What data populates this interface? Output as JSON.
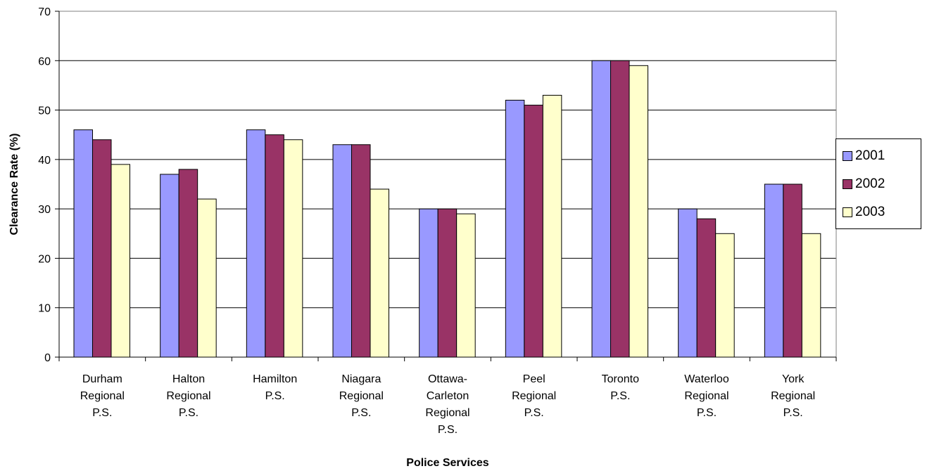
{
  "chart_data": {
    "type": "bar",
    "title": "",
    "xlabel": "Police Services",
    "ylabel": "Clearance Rate (%)",
    "ylim": [
      0,
      70
    ],
    "yticks": [
      0,
      10,
      20,
      30,
      40,
      50,
      60,
      70
    ],
    "grid": "horizontal",
    "legend_position": "right",
    "categories": [
      [
        "Durham",
        "Regional",
        "P.S."
      ],
      [
        "Halton",
        "Regional",
        "P.S."
      ],
      [
        "Hamilton",
        "P.S."
      ],
      [
        "Niagara",
        "Regional",
        "P.S."
      ],
      [
        "Ottawa-",
        "Carleton",
        "Regional",
        "P.S."
      ],
      [
        "Peel",
        "Regional",
        "P.S."
      ],
      [
        "Toronto",
        "P.S."
      ],
      [
        "Waterloo",
        "Regional",
        "P.S."
      ],
      [
        "York",
        "Regional",
        "P.S."
      ]
    ],
    "series": [
      {
        "name": "2001",
        "color": "#9999ff",
        "values": [
          46,
          37,
          46,
          43,
          30,
          52,
          60,
          30,
          35
        ]
      },
      {
        "name": "2002",
        "color": "#993366",
        "values": [
          44,
          38,
          45,
          43,
          30,
          51,
          60,
          28,
          35
        ]
      },
      {
        "name": "2003",
        "color": "#ffffcc",
        "values": [
          39,
          32,
          44,
          34,
          29,
          53,
          59,
          25,
          25
        ]
      }
    ]
  }
}
